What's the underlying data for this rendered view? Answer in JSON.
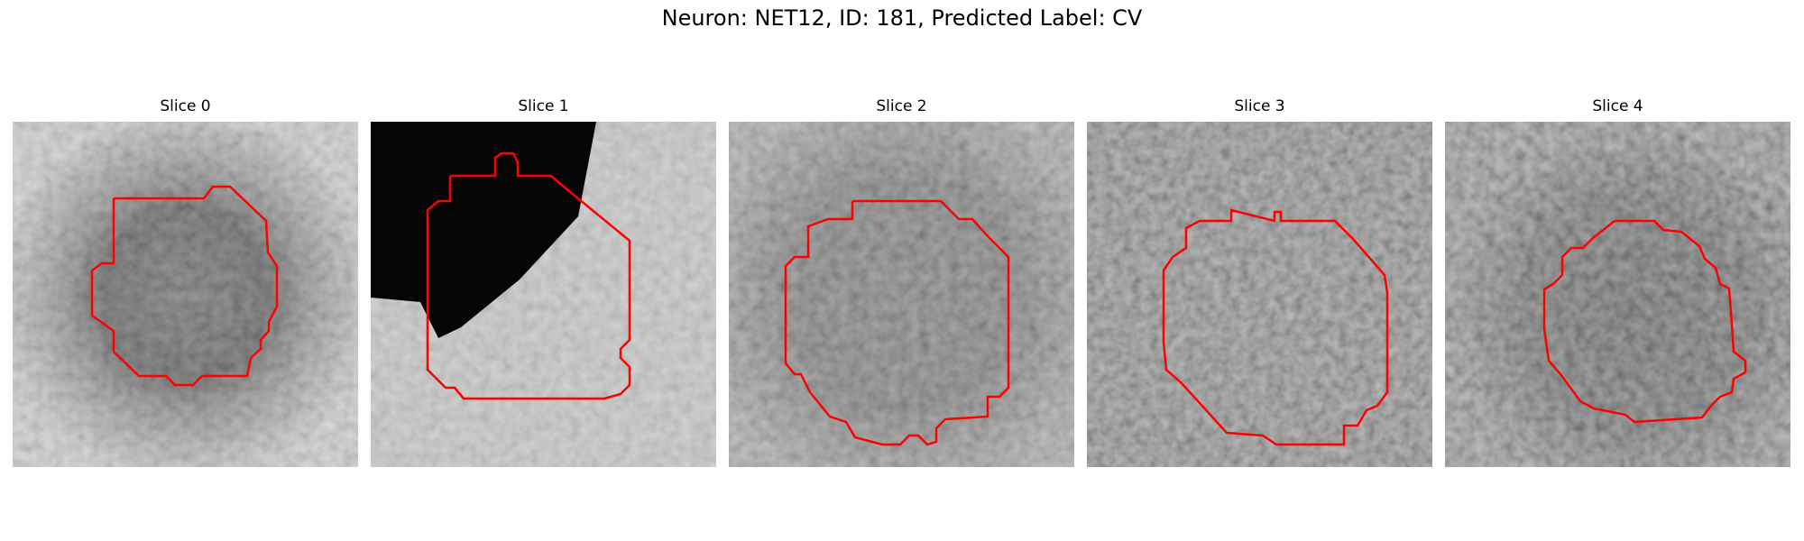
{
  "figure": {
    "title": "Neuron: NET12, ID: 181, Predicted Label: CV",
    "contour_color": "#ff0000"
  },
  "panels": [
    {
      "title": "Slice 0"
    },
    {
      "title": "Slice 1"
    },
    {
      "title": "Slice 2"
    },
    {
      "title": "Slice 3"
    },
    {
      "title": "Slice 4"
    }
  ]
}
